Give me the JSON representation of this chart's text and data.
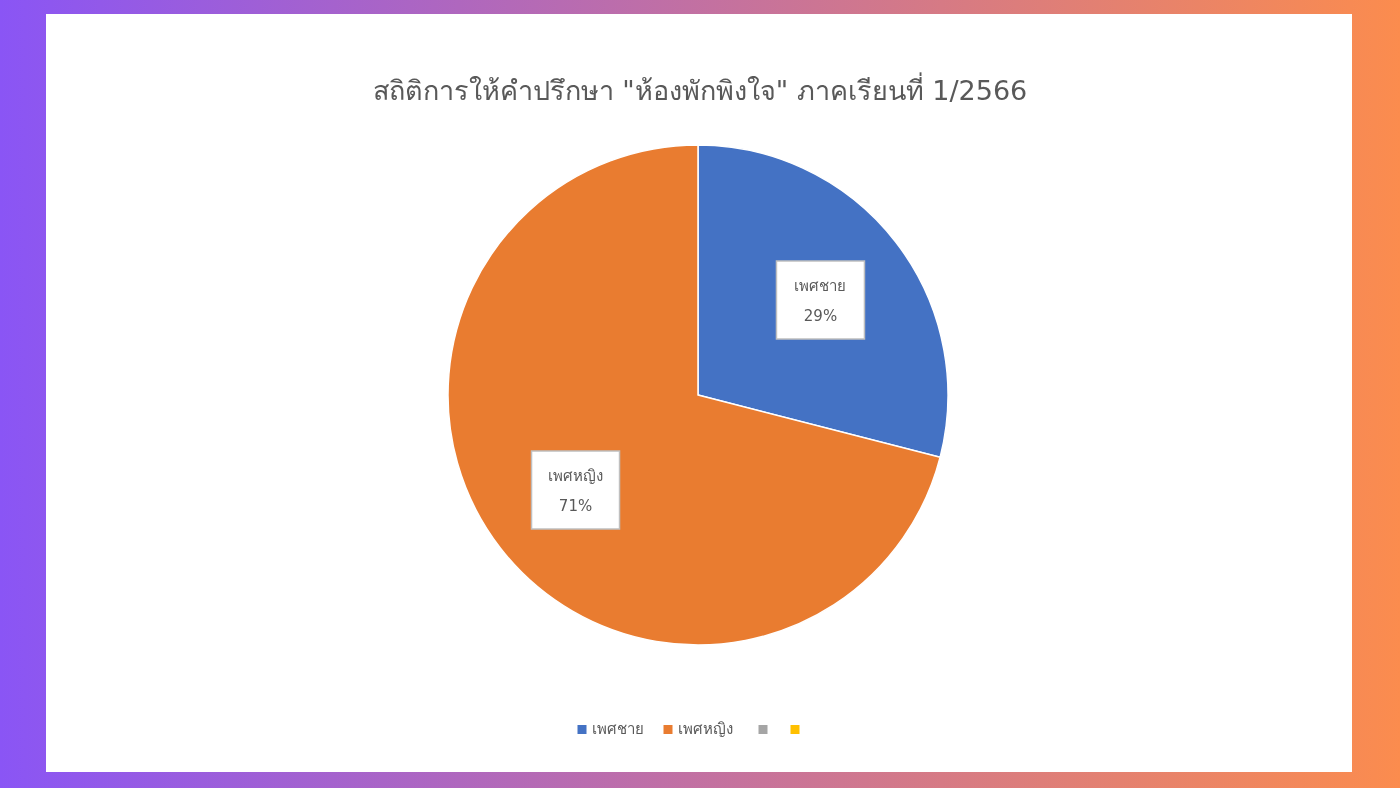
{
  "chart_data": {
    "type": "pie",
    "title": "สถิติการให้คำปรึกษา \"ห้องพักพิงใจ\" ภาคเรียนที่ 1/2566",
    "categories": [
      "เพศชาย",
      "เพศหญิง",
      null,
      null
    ],
    "values": [
      29,
      71,
      0,
      0
    ],
    "colors": [
      "#4472c4",
      "#e97c30",
      "#a5a5a5",
      "#ffc000"
    ],
    "value_labels": [
      "29%",
      "71%",
      null,
      null
    ],
    "legend": "bottom"
  }
}
